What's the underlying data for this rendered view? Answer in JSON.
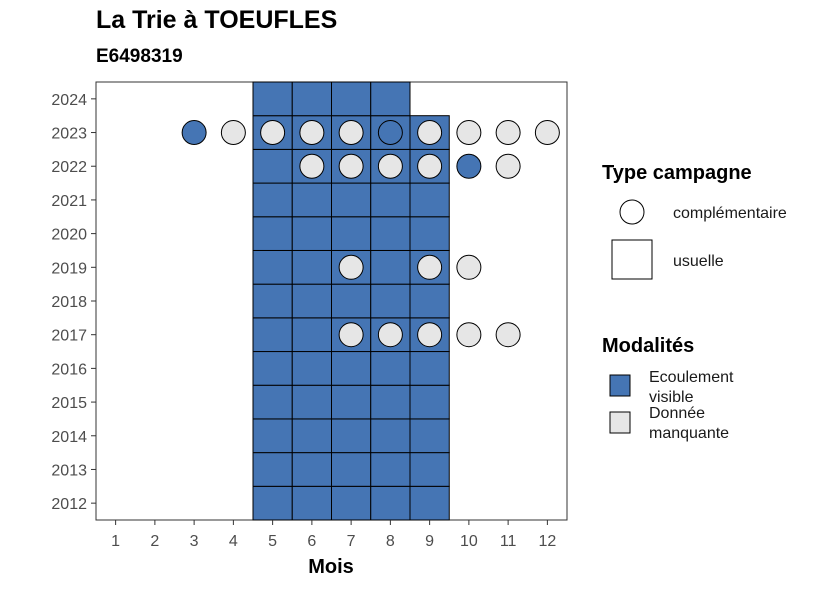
{
  "header": {
    "title": "La Trie à TOEUFLES",
    "subtitle": "E6498319"
  },
  "colors": {
    "ecoulement_visible": "#4575b4",
    "donnee_manquante": "#e6e6e6",
    "outline": "#000000"
  },
  "legend": {
    "type_title": "Type campagne",
    "type_items": [
      {
        "label": "complémentaire",
        "shape": "circle"
      },
      {
        "label": "usuelle",
        "shape": "square"
      }
    ],
    "mod_title": "Modalités",
    "mod_items": [
      {
        "label_lines": [
          "Ecoulement",
          "visible"
        ],
        "color_key": "ecoulement_visible"
      },
      {
        "label_lines": [
          "Donnée",
          "manquante"
        ],
        "color_key": "donnee_manquante"
      }
    ]
  },
  "chart_data": {
    "type": "heatmap",
    "title": "La Trie à TOEUFLES",
    "subtitle": "E6498319",
    "xlabel": "Mois",
    "ylabel": "",
    "x_ticks": [
      1,
      2,
      3,
      4,
      5,
      6,
      7,
      8,
      9,
      10,
      11,
      12
    ],
    "y_ticks": [
      2012,
      2013,
      2014,
      2015,
      2016,
      2017,
      2018,
      2019,
      2020,
      2021,
      2022,
      2023,
      2024
    ],
    "xlim": [
      0.5,
      12.5
    ],
    "ylim": [
      2011.5,
      2024.5
    ],
    "usuelle": [
      {
        "year": 2012,
        "months": [
          5,
          6,
          7,
          8,
          9
        ],
        "modalite": "Ecoulement visible"
      },
      {
        "year": 2013,
        "months": [
          5,
          6,
          7,
          8,
          9
        ],
        "modalite": "Ecoulement visible"
      },
      {
        "year": 2014,
        "months": [
          5,
          6,
          7,
          8,
          9
        ],
        "modalite": "Ecoulement visible"
      },
      {
        "year": 2015,
        "months": [
          5,
          6,
          7,
          8,
          9
        ],
        "modalite": "Ecoulement visible"
      },
      {
        "year": 2016,
        "months": [
          5,
          6,
          7,
          8,
          9
        ],
        "modalite": "Ecoulement visible"
      },
      {
        "year": 2017,
        "months": [
          5,
          6,
          7,
          8,
          9
        ],
        "modalite": "Ecoulement visible"
      },
      {
        "year": 2018,
        "months": [
          5,
          6,
          7,
          8,
          9
        ],
        "modalite": "Ecoulement visible"
      },
      {
        "year": 2019,
        "months": [
          5,
          6,
          7,
          8,
          9
        ],
        "modalite": "Ecoulement visible"
      },
      {
        "year": 2020,
        "months": [
          5,
          6,
          7,
          8,
          9
        ],
        "modalite": "Ecoulement visible"
      },
      {
        "year": 2021,
        "months": [
          5,
          6,
          7,
          8,
          9
        ],
        "modalite": "Ecoulement visible"
      },
      {
        "year": 2022,
        "months": [
          5,
          6,
          7,
          8,
          9
        ],
        "modalite": "Ecoulement visible"
      },
      {
        "year": 2023,
        "months": [
          5,
          6,
          7,
          8,
          9
        ],
        "modalite": "Ecoulement visible"
      },
      {
        "year": 2024,
        "months": [
          5,
          6,
          7,
          8
        ],
        "modalite": "Ecoulement visible"
      }
    ],
    "complementaire": [
      {
        "year": 2023,
        "month": 3,
        "modalite": "Ecoulement visible"
      },
      {
        "year": 2023,
        "month": 4,
        "modalite": "Donnée manquante"
      },
      {
        "year": 2023,
        "month": 5,
        "modalite": "Donnée manquante"
      },
      {
        "year": 2023,
        "month": 6,
        "modalite": "Donnée manquante"
      },
      {
        "year": 2023,
        "month": 7,
        "modalite": "Donnée manquante"
      },
      {
        "year": 2023,
        "month": 8,
        "modalite": "Ecoulement visible"
      },
      {
        "year": 2023,
        "month": 9,
        "modalite": "Donnée manquante"
      },
      {
        "year": 2023,
        "month": 10,
        "modalite": "Donnée manquante"
      },
      {
        "year": 2023,
        "month": 11,
        "modalite": "Donnée manquante"
      },
      {
        "year": 2023,
        "month": 12,
        "modalite": "Donnée manquante"
      },
      {
        "year": 2022,
        "month": 6,
        "modalite": "Donnée manquante"
      },
      {
        "year": 2022,
        "month": 7,
        "modalite": "Donnée manquante"
      },
      {
        "year": 2022,
        "month": 8,
        "modalite": "Donnée manquante"
      },
      {
        "year": 2022,
        "month": 9,
        "modalite": "Donnée manquante"
      },
      {
        "year": 2022,
        "month": 10,
        "modalite": "Ecoulement visible"
      },
      {
        "year": 2022,
        "month": 11,
        "modalite": "Donnée manquante"
      },
      {
        "year": 2019,
        "month": 7,
        "modalite": "Donnée manquante"
      },
      {
        "year": 2019,
        "month": 9,
        "modalite": "Donnée manquante"
      },
      {
        "year": 2019,
        "month": 10,
        "modalite": "Donnée manquante"
      },
      {
        "year": 2017,
        "month": 7,
        "modalite": "Donnée manquante"
      },
      {
        "year": 2017,
        "month": 8,
        "modalite": "Donnée manquante"
      },
      {
        "year": 2017,
        "month": 9,
        "modalite": "Donnée manquante"
      },
      {
        "year": 2017,
        "month": 10,
        "modalite": "Donnée manquante"
      },
      {
        "year": 2017,
        "month": 11,
        "modalite": "Donnée manquante"
      }
    ],
    "grid": false,
    "legend_position": "right"
  }
}
